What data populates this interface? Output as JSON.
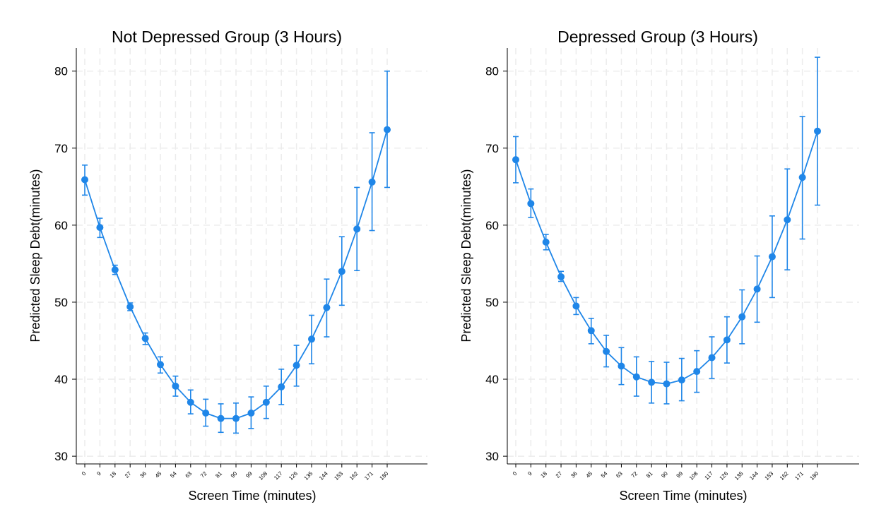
{
  "colors": {
    "series": "#1f86e8",
    "grid": "#ececec",
    "axis": "#000000"
  },
  "chart_data": [
    {
      "type": "line",
      "title": "Not Depressed Group (3 Hours)",
      "xlabel": "Screen Time (minutes)",
      "ylabel": "Predicted Sleep Debt(minutes)",
      "x": [
        0,
        9,
        18,
        27,
        36,
        45,
        54,
        63,
        72,
        81,
        90,
        99,
        108,
        117,
        126,
        135,
        144,
        153,
        162,
        171,
        180
      ],
      "y_ticks": [
        30,
        40,
        50,
        60,
        70,
        80
      ],
      "ylim": [
        29,
        83
      ],
      "grid": true,
      "series": [
        {
          "values": [
            65.9,
            59.7,
            54.2,
            49.4,
            45.3,
            41.9,
            39.1,
            37.0,
            35.6,
            34.9,
            34.9,
            35.6,
            37.0,
            39.0,
            41.8,
            45.2,
            49.3,
            54.0,
            59.5,
            65.6,
            72.4
          ],
          "ci_low": [
            63.9,
            58.4,
            53.6,
            48.9,
            44.5,
            40.8,
            37.8,
            35.5,
            33.9,
            33.1,
            33.0,
            33.6,
            34.9,
            36.7,
            39.1,
            42.0,
            45.5,
            49.6,
            54.1,
            59.3,
            64.9
          ],
          "ci_high": [
            67.8,
            60.9,
            54.8,
            49.9,
            46.0,
            42.9,
            40.4,
            38.6,
            37.4,
            36.8,
            36.9,
            37.7,
            39.1,
            41.3,
            44.4,
            48.3,
            53.0,
            58.5,
            64.9,
            72.0,
            80.0
          ]
        }
      ]
    },
    {
      "type": "line",
      "title": "Depressed Group (3 Hours)",
      "xlabel": "Screen Time (minutes)",
      "ylabel": "Predicted Sleep Debt(minutes)",
      "x": [
        0,
        9,
        18,
        27,
        36,
        45,
        54,
        63,
        72,
        81,
        90,
        99,
        108,
        117,
        126,
        135,
        144,
        153,
        162,
        171,
        180
      ],
      "y_ticks": [
        30,
        40,
        50,
        60,
        70,
        80
      ],
      "ylim": [
        29,
        83
      ],
      "grid": true,
      "series": [
        {
          "values": [
            68.5,
            62.8,
            57.8,
            53.3,
            49.5,
            46.3,
            43.6,
            41.7,
            40.3,
            39.6,
            39.4,
            39.9,
            41.0,
            42.8,
            45.1,
            48.1,
            51.7,
            55.9,
            60.7,
            66.2,
            72.2
          ],
          "ci_low": [
            65.5,
            61.0,
            56.8,
            52.7,
            48.4,
            44.6,
            41.6,
            39.3,
            37.8,
            36.9,
            36.8,
            37.2,
            38.3,
            40.1,
            42.1,
            44.6,
            47.4,
            50.6,
            54.2,
            58.2,
            62.6
          ],
          "ci_high": [
            71.5,
            64.7,
            58.8,
            54.0,
            50.6,
            47.9,
            45.7,
            44.1,
            42.9,
            42.3,
            42.2,
            42.7,
            43.7,
            45.5,
            48.1,
            51.6,
            56.0,
            61.2,
            67.3,
            74.1,
            81.8
          ]
        }
      ]
    }
  ]
}
